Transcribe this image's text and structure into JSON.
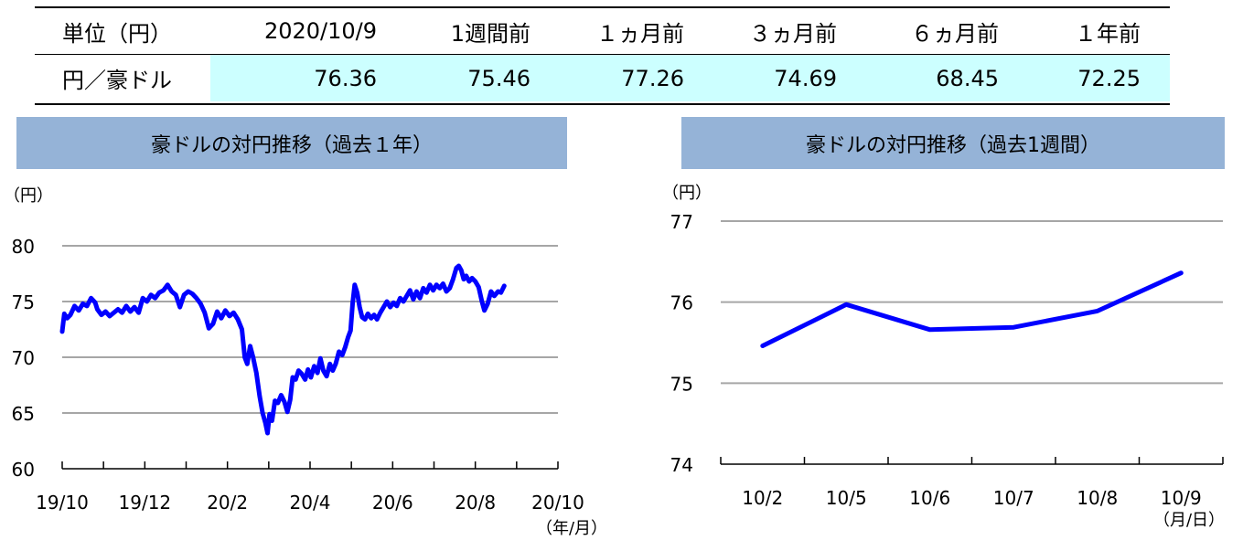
{
  "rate_table": {
    "header_label": "単位（円）",
    "columns": [
      "2020/10/9",
      "1週間前",
      "１ヵ月前",
      "３ヵ月前",
      "６ヵ月前",
      "１年前"
    ],
    "row_label": "円／豪ドル",
    "values": [
      "76.36",
      "75.46",
      "77.26",
      "74.69",
      "68.45",
      "72.25"
    ]
  },
  "chart_data": [
    {
      "type": "line",
      "title": "豪ドルの対円推移（過去１年）",
      "ylabel": "（円）",
      "xlabel": "（年/月）",
      "ylim": [
        60,
        80
      ],
      "yticks": [
        60,
        65,
        70,
        75,
        80
      ],
      "xticks": [
        "19/10",
        "19/12",
        "20/2",
        "20/4",
        "20/6",
        "20/8",
        "20/10"
      ],
      "x_month_range": [
        0,
        12
      ],
      "line_color": "#0000ff",
      "grid": true,
      "points": [
        [
          0.0,
          72.3
        ],
        [
          0.05,
          73.9
        ],
        [
          0.12,
          73.5
        ],
        [
          0.2,
          73.8
        ],
        [
          0.3,
          74.6
        ],
        [
          0.4,
          74.2
        ],
        [
          0.5,
          74.8
        ],
        [
          0.6,
          74.6
        ],
        [
          0.7,
          75.3
        ],
        [
          0.8,
          74.9
        ],
        [
          0.85,
          74.3
        ],
        [
          0.95,
          73.8
        ],
        [
          1.05,
          74.1
        ],
        [
          1.15,
          73.7
        ],
        [
          1.25,
          74.0
        ],
        [
          1.35,
          74.3
        ],
        [
          1.45,
          74.0
        ],
        [
          1.55,
          74.6
        ],
        [
          1.65,
          74.1
        ],
        [
          1.75,
          74.5
        ],
        [
          1.85,
          74.0
        ],
        [
          1.95,
          75.3
        ],
        [
          2.05,
          75.0
        ],
        [
          2.15,
          75.6
        ],
        [
          2.25,
          75.3
        ],
        [
          2.35,
          75.8
        ],
        [
          2.45,
          76.0
        ],
        [
          2.55,
          76.5
        ],
        [
          2.65,
          75.9
        ],
        [
          2.75,
          75.6
        ],
        [
          2.85,
          74.5
        ],
        [
          2.95,
          75.6
        ],
        [
          3.05,
          75.9
        ],
        [
          3.15,
          75.7
        ],
        [
          3.25,
          75.3
        ],
        [
          3.35,
          74.8
        ],
        [
          3.45,
          74.0
        ],
        [
          3.55,
          72.6
        ],
        [
          3.65,
          73.0
        ],
        [
          3.75,
          74.1
        ],
        [
          3.85,
          73.5
        ],
        [
          3.95,
          74.2
        ],
        [
          4.05,
          73.7
        ],
        [
          4.15,
          74.0
        ],
        [
          4.25,
          73.4
        ],
        [
          4.35,
          72.5
        ],
        [
          4.42,
          70.0
        ],
        [
          4.48,
          69.4
        ],
        [
          4.55,
          71.0
        ],
        [
          4.62,
          70.0
        ],
        [
          4.7,
          68.6
        ],
        [
          4.78,
          66.5
        ],
        [
          4.85,
          65.0
        ],
        [
          4.92,
          64.1
        ],
        [
          4.97,
          63.2
        ],
        [
          5.02,
          64.9
        ],
        [
          5.08,
          64.3
        ],
        [
          5.15,
          66.1
        ],
        [
          5.22,
          65.9
        ],
        [
          5.3,
          66.6
        ],
        [
          5.38,
          66.0
        ],
        [
          5.45,
          65.1
        ],
        [
          5.52,
          66.2
        ],
        [
          5.58,
          68.2
        ],
        [
          5.65,
          68.0
        ],
        [
          5.72,
          68.8
        ],
        [
          5.8,
          68.5
        ],
        [
          5.88,
          68.0
        ],
        [
          5.95,
          68.9
        ],
        [
          6.02,
          68.2
        ],
        [
          6.1,
          69.2
        ],
        [
          6.18,
          68.6
        ],
        [
          6.25,
          69.9
        ],
        [
          6.32,
          68.8
        ],
        [
          6.4,
          68.3
        ],
        [
          6.48,
          69.4
        ],
        [
          6.55,
          68.8
        ],
        [
          6.62,
          69.4
        ],
        [
          6.7,
          70.5
        ],
        [
          6.78,
          70.2
        ],
        [
          6.85,
          70.9
        ],
        [
          6.92,
          71.8
        ],
        [
          6.98,
          72.4
        ],
        [
          7.03,
          74.8
        ],
        [
          7.08,
          76.5
        ],
        [
          7.14,
          75.8
        ],
        [
          7.2,
          74.5
        ],
        [
          7.26,
          73.6
        ],
        [
          7.33,
          73.4
        ],
        [
          7.4,
          73.9
        ],
        [
          7.48,
          73.5
        ],
        [
          7.55,
          73.8
        ],
        [
          7.62,
          73.4
        ],
        [
          7.7,
          74.0
        ],
        [
          7.78,
          74.5
        ],
        [
          7.86,
          75.0
        ],
        [
          7.94,
          74.5
        ],
        [
          8.02,
          74.9
        ],
        [
          8.1,
          74.6
        ],
        [
          8.18,
          75.3
        ],
        [
          8.26,
          75.0
        ],
        [
          8.34,
          75.5
        ],
        [
          8.42,
          76.0
        ],
        [
          8.5,
          75.2
        ],
        [
          8.58,
          75.9
        ],
        [
          8.66,
          75.3
        ],
        [
          8.74,
          76.2
        ],
        [
          8.82,
          75.8
        ],
        [
          8.9,
          76.5
        ],
        [
          8.98,
          76.0
        ],
        [
          9.06,
          76.5
        ],
        [
          9.14,
          76.2
        ],
        [
          9.22,
          76.6
        ],
        [
          9.3,
          75.9
        ],
        [
          9.38,
          76.2
        ],
        [
          9.46,
          77.0
        ],
        [
          9.54,
          78.0
        ],
        [
          9.6,
          78.2
        ],
        [
          9.66,
          77.8
        ],
        [
          9.72,
          77.0
        ],
        [
          9.78,
          77.3
        ],
        [
          9.85,
          76.8
        ],
        [
          9.92,
          77.1
        ],
        [
          10.0,
          76.8
        ],
        [
          10.08,
          76.3
        ],
        [
          10.16,
          75.0
        ],
        [
          10.22,
          74.2
        ],
        [
          10.3,
          74.8
        ],
        [
          10.38,
          75.9
        ],
        [
          10.46,
          75.5
        ],
        [
          10.55,
          75.9
        ],
        [
          10.62,
          75.8
        ],
        [
          10.7,
          76.4
        ]
      ]
    },
    {
      "type": "line",
      "title": "豪ドルの対円推移（過去1週間）",
      "ylabel": "（円）",
      "xlabel": "（月/日）",
      "ylim": [
        74,
        77
      ],
      "yticks": [
        74,
        75,
        76,
        77
      ],
      "categories": [
        "10/2",
        "10/5",
        "10/6",
        "10/7",
        "10/8",
        "10/9"
      ],
      "values": [
        75.46,
        75.97,
        75.66,
        75.69,
        75.89,
        76.36
      ],
      "line_color": "#0000ff",
      "grid": true
    }
  ]
}
